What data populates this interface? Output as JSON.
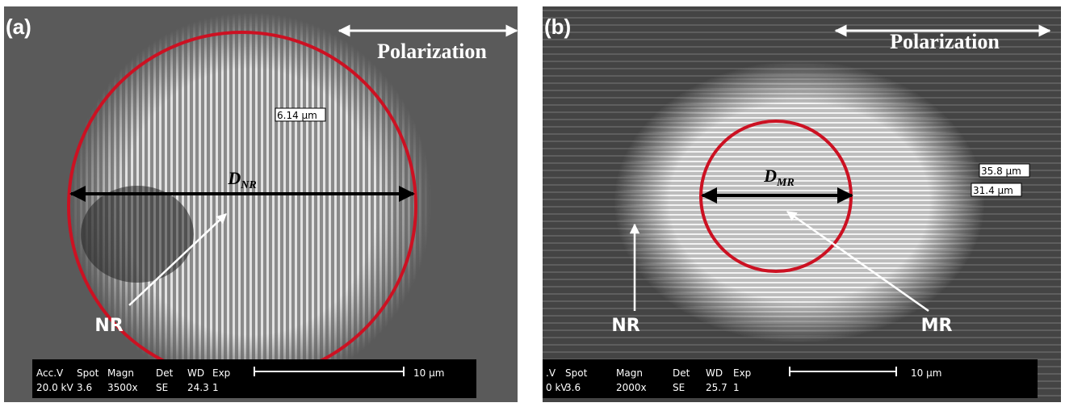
{
  "panels": [
    {
      "label": "(a)",
      "polarization": "Polarization",
      "diameter": {
        "letter": "D",
        "subscript": "NR"
      },
      "measurements": [
        "6.14 µm"
      ],
      "regions": [
        "NR"
      ],
      "info_bar": {
        "headers": [
          "Acc.V",
          "Spot",
          "Magn",
          "Det",
          "WD",
          "Exp"
        ],
        "values": [
          "20.0 kV",
          "3.6",
          "3500x",
          "SE",
          "24.3",
          "1"
        ],
        "scale": "10 µm"
      }
    },
    {
      "label": "(b)",
      "polarization": "Polarization",
      "diameter": {
        "letter": "D",
        "subscript": "MR"
      },
      "measurements": [
        "35.8 µm",
        "31.4 µm"
      ],
      "regions": [
        "NR",
        "MR"
      ],
      "info_bar": {
        "headers": [
          ".V",
          "Spot",
          "Magn",
          "Det",
          "WD",
          "Exp"
        ],
        "values": [
          "0 kV",
          "3.6",
          "2000x",
          "SE",
          "25.7",
          "1"
        ],
        "scale": "10 µm"
      }
    }
  ]
}
